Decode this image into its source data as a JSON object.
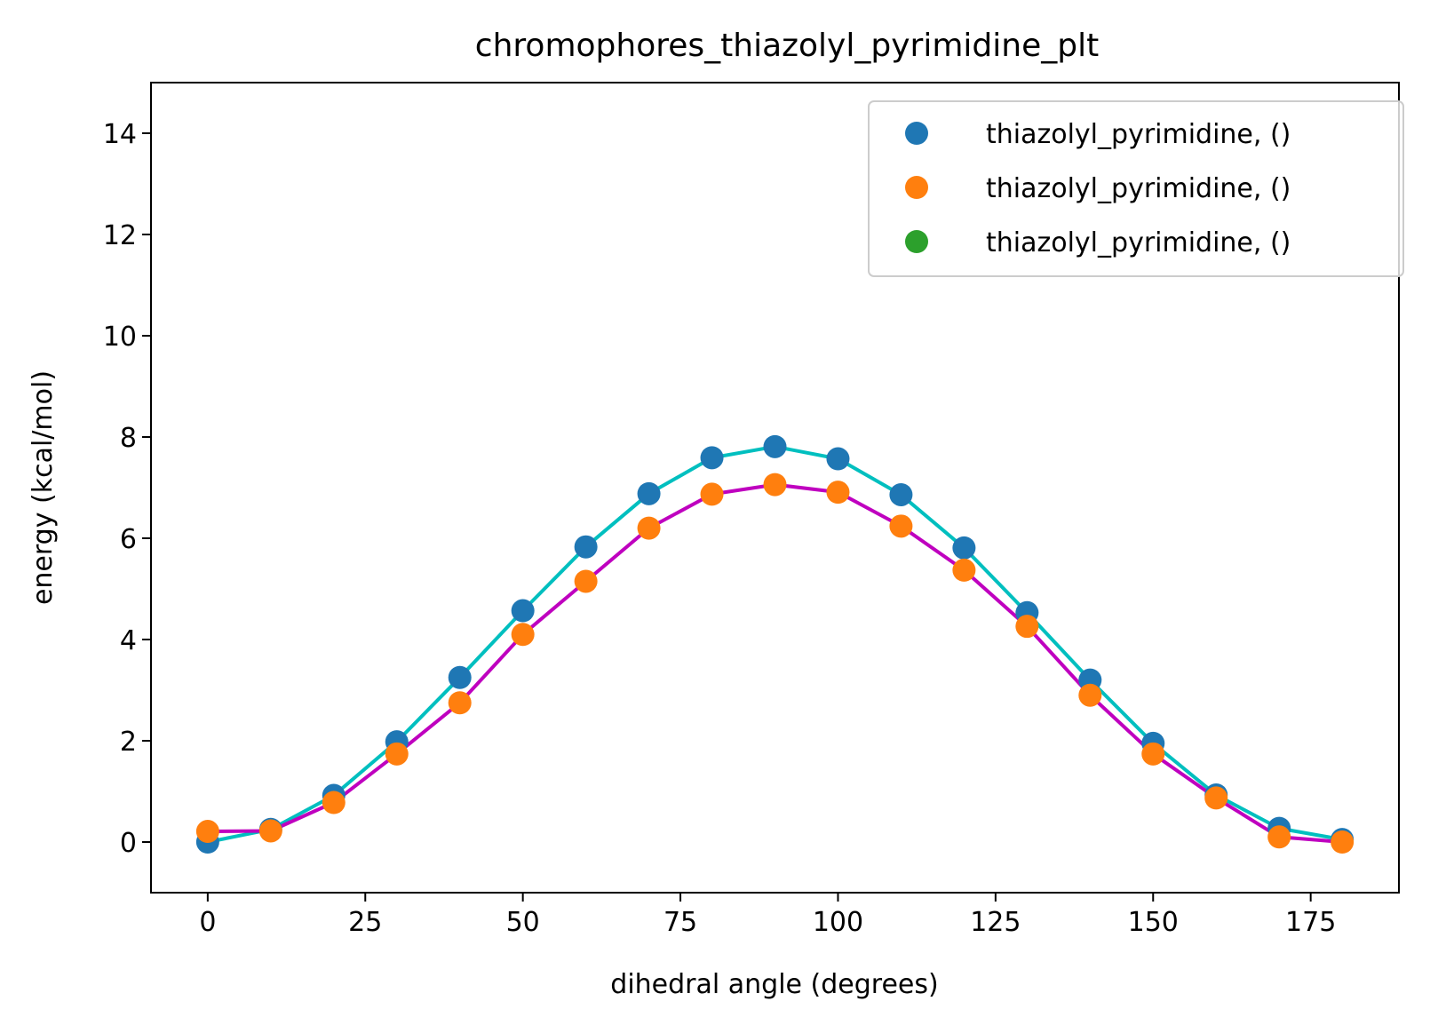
{
  "chart_data": {
    "type": "scatter",
    "title": "chromophores_thiazolyl_pyrimidine_plt",
    "xlabel": "dihedral angle (degrees)",
    "ylabel": "energy (kcal/mol)",
    "xlim": [
      -9,
      189
    ],
    "ylim": [
      -1,
      15
    ],
    "xticks": [
      0,
      25,
      50,
      75,
      100,
      125,
      150,
      175
    ],
    "yticks": [
      0,
      2,
      4,
      6,
      8,
      10,
      12,
      14
    ],
    "grid": false,
    "legend_position": "top-right",
    "x": [
      0,
      10,
      20,
      30,
      40,
      50,
      60,
      70,
      80,
      90,
      100,
      110,
      120,
      130,
      140,
      150,
      160,
      170,
      180
    ],
    "series": [
      {
        "name": "thiazolyl_pyrimidine, ()",
        "kind": "scatter",
        "color": "#1f77b4",
        "values": [
          0.0,
          0.25,
          0.92,
          1.98,
          3.25,
          4.57,
          5.83,
          6.88,
          7.59,
          7.81,
          7.57,
          6.86,
          5.81,
          4.53,
          3.2,
          1.95,
          0.93,
          0.27,
          0.05
        ]
      },
      {
        "name": "thiazolyl_pyrimidine, ()",
        "kind": "scatter",
        "color": "#ff7f0e",
        "values": [
          0.21,
          0.22,
          0.78,
          1.74,
          2.75,
          4.1,
          5.15,
          6.2,
          6.87,
          7.06,
          6.91,
          6.24,
          5.37,
          4.26,
          2.9,
          1.74,
          0.87,
          0.1,
          0.0
        ]
      },
      {
        "name": "thiazolyl_pyrimidine, ()",
        "kind": "scatter",
        "color": "#2ca02c",
        "values": []
      },
      {
        "kind": "line",
        "color": "#00bfbf",
        "values": [
          0.0,
          0.25,
          0.92,
          1.98,
          3.25,
          4.57,
          5.83,
          6.88,
          7.59,
          7.81,
          7.57,
          6.86,
          5.81,
          4.53,
          3.2,
          1.95,
          0.93,
          0.27,
          0.05
        ]
      },
      {
        "kind": "line",
        "color": "#bf00bf",
        "values": [
          0.21,
          0.22,
          0.78,
          1.74,
          2.75,
          4.1,
          5.15,
          6.2,
          6.87,
          7.06,
          6.91,
          6.24,
          5.37,
          4.26,
          2.9,
          1.74,
          0.87,
          0.1,
          0.0
        ]
      }
    ]
  }
}
